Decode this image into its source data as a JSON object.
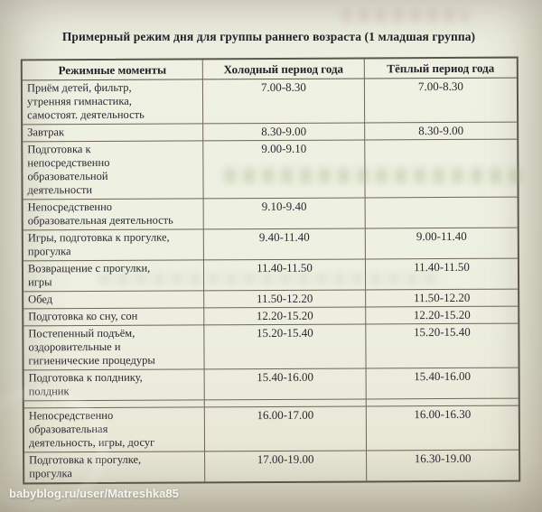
{
  "title": "Примерный режим дня для группы раннего возраста (1 младшая группа)",
  "watermark": "babyblog.ru/user/Matreshka85",
  "table": {
    "headers": [
      "Режимные моменты",
      "Холодный период года",
      "Тёплый период года"
    ],
    "rows": [
      {
        "moment": "Приём детей, фильтр,\nутренняя гимнастика,\nсамостоят. деятельность",
        "cold": "7.00-8.30",
        "warm": "7.00-8.30"
      },
      {
        "moment": "Завтрак",
        "cold": "8.30-9.00",
        "warm": "8.30-9.00"
      },
      {
        "moment": "Подготовка к\nнепосредственно\nобразовательной\nдеятельности",
        "cold": "9.00-9.10",
        "warm": ""
      },
      {
        "moment": "Непосредственно\nобразовательная деятельность",
        "cold": "9.10-9.40",
        "warm": ""
      },
      {
        "moment": "Игры, подготовка к прогулке,\nпрогулка",
        "cold": "9.40-11.40",
        "warm": "9.00-11.40"
      },
      {
        "moment": "Возвращение с прогулки,\nигры",
        "cold": "11.40-11.50",
        "warm": "11.40-11.50"
      },
      {
        "moment": "Обед",
        "cold": "11.50-12.20",
        "warm": "11.50-12.20"
      },
      {
        "moment": "Подготовка ко сну, сон",
        "cold": "12.20-15.20",
        "warm": "12.20-15.20"
      },
      {
        "moment": "Постепенный подъём,\nоздоровительные и\nгигиенические процедуры",
        "cold": "15.20-15.40",
        "warm": "15.20-15.40"
      },
      {
        "moment": "Подготовка к полднику,\nполдник",
        "cold": "15.40-16.00",
        "warm": "15.40-16.00"
      },
      {
        "moment": "",
        "cold": "",
        "warm": "",
        "spacer": true
      },
      {
        "moment": "Непосредственно\nобразовательная\nдеятельность, игры, досуг",
        "cold": "16.00-17.00",
        "warm": "16.00-16.30"
      },
      {
        "moment": "Подготовка к прогулке,\nпрогулка",
        "cold": "17.00-19.00",
        "warm": "16.30-19.00"
      }
    ]
  }
}
